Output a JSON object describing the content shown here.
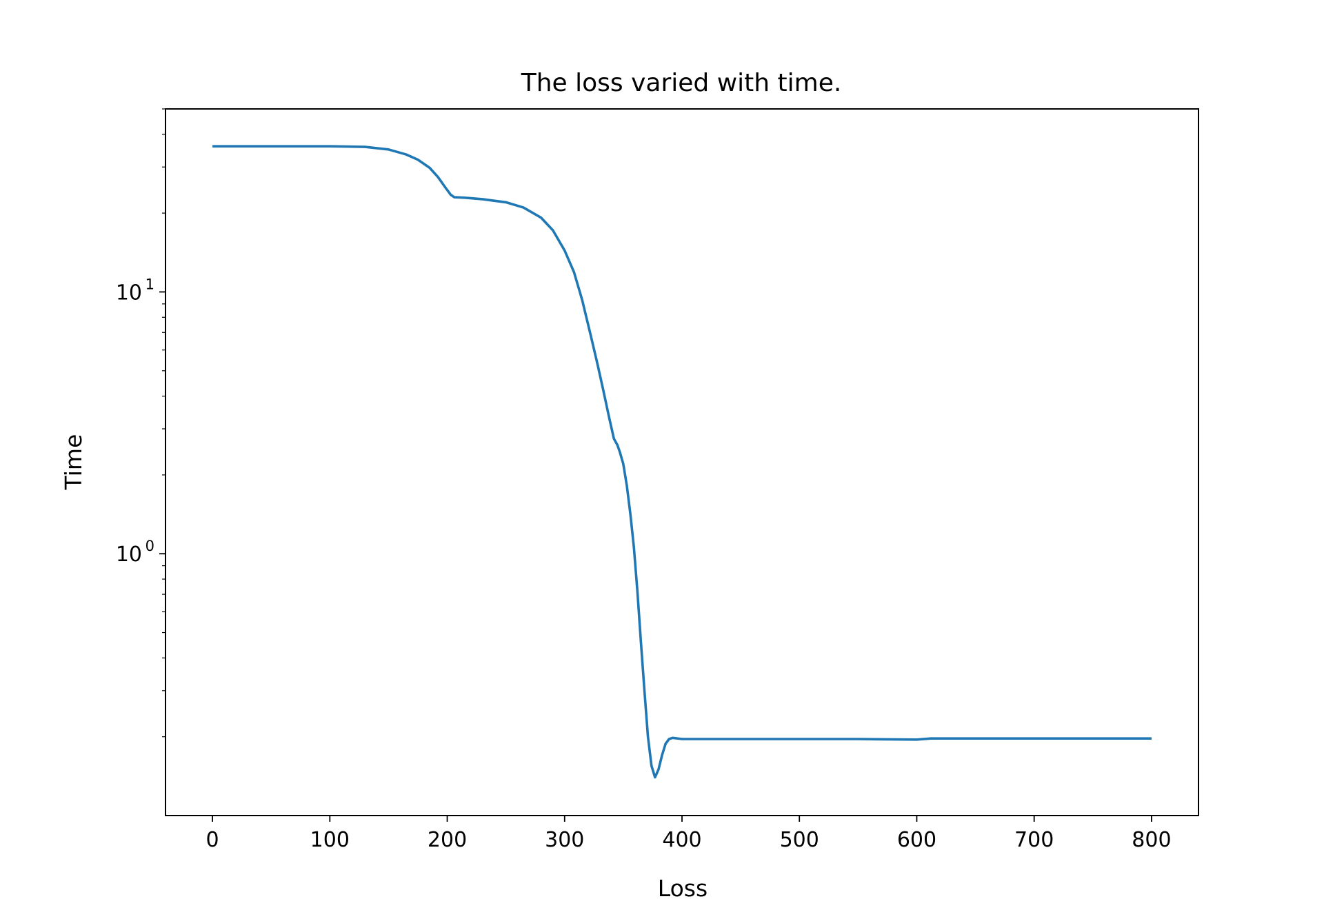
{
  "chart_data": {
    "type": "line",
    "title": "The loss varied with time.",
    "xlabel": "Loss",
    "ylabel": "Time",
    "xlim": [
      -40,
      840
    ],
    "ylim": [
      0.1,
      50
    ],
    "yscale": "log",
    "grid": false,
    "x_ticks": [
      0,
      100,
      200,
      300,
      400,
      500,
      600,
      700,
      800
    ],
    "x_tick_labels": [
      "0",
      "100",
      "200",
      "300",
      "400",
      "500",
      "600",
      "700",
      "800"
    ],
    "y_ticks": [
      {
        "value": 1,
        "base": "10",
        "exp": "0"
      },
      {
        "value": 10,
        "base": "10",
        "exp": "1"
      }
    ],
    "series": [
      {
        "color": "#1f77b4",
        "x": [
          0,
          50,
          100,
          130,
          150,
          165,
          175,
          185,
          192,
          198,
          203,
          206,
          215,
          230,
          250,
          265,
          280,
          290,
          300,
          308,
          315,
          322,
          328,
          333,
          338,
          342,
          345,
          347,
          350,
          353,
          356,
          359,
          362,
          365,
          368,
          371,
          374,
          377,
          380,
          383,
          386,
          389,
          392,
          400,
          450,
          500,
          550,
          600,
          612,
          650,
          700,
          750,
          800
        ],
        "y": [
          36,
          36,
          36,
          35.8,
          35,
          33.5,
          32,
          29.8,
          27.5,
          25.2,
          23.5,
          23.0,
          22.9,
          22.6,
          22.0,
          21.0,
          19.2,
          17.2,
          14.4,
          11.9,
          9.3,
          6.9,
          5.3,
          4.2,
          3.3,
          2.75,
          2.6,
          2.45,
          2.2,
          1.82,
          1.42,
          1.06,
          0.72,
          0.46,
          0.3,
          0.2,
          0.155,
          0.14,
          0.15,
          0.17,
          0.188,
          0.196,
          0.198,
          0.196,
          0.196,
          0.196,
          0.196,
          0.195,
          0.197,
          0.197,
          0.197,
          0.197,
          0.197
        ]
      }
    ]
  }
}
